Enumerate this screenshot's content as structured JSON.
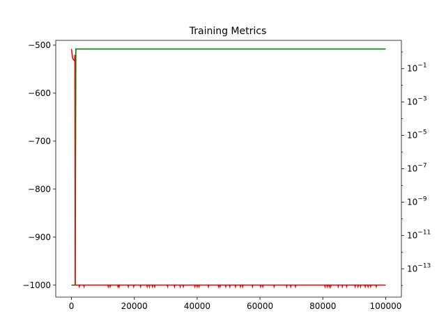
{
  "chart_data": {
    "type": "line",
    "title": "Training Metrics",
    "xlabel": "",
    "ylabel": "",
    "y2label": "",
    "grid": false,
    "legend": "none",
    "xlim": [
      -5000,
      105000
    ],
    "ylim": [
      -1025,
      -490
    ],
    "y2lim_log10": [
      -14.7,
      0.7
    ],
    "x_ticks": [
      {
        "value": 0,
        "label": "0"
      },
      {
        "value": 20000,
        "label": "20000"
      },
      {
        "value": 40000,
        "label": "40000"
      },
      {
        "value": 60000,
        "label": "60000"
      },
      {
        "value": 80000,
        "label": "80000"
      },
      {
        "value": 100000,
        "label": "100000"
      }
    ],
    "y_ticks": [
      {
        "value": -500,
        "label": "−500"
      },
      {
        "value": -600,
        "label": "−600"
      },
      {
        "value": -700,
        "label": "−700"
      },
      {
        "value": -800,
        "label": "−800"
      },
      {
        "value": -900,
        "label": "−900"
      },
      {
        "value": -1000,
        "label": "−1000"
      }
    ],
    "y2_ticks": [
      {
        "exp": -1,
        "base": "10",
        "sup": "−1"
      },
      {
        "exp": -3,
        "base": "10",
        "sup": "−3"
      },
      {
        "exp": -5,
        "base": "10",
        "sup": "−5"
      },
      {
        "exp": -7,
        "base": "10",
        "sup": "−7"
      },
      {
        "exp": -9,
        "base": "10",
        "sup": "−9"
      },
      {
        "exp": -11,
        "base": "10",
        "sup": "−11"
      },
      {
        "exp": -13,
        "base": "10",
        "sup": "−13"
      }
    ],
    "series": [
      {
        "color": "#008000",
        "axis": "left",
        "x": [
          0,
          1000,
          1200,
          1400,
          100000
        ],
        "y": [
          -1000,
          -1000,
          -1000,
          -508,
          -508
        ]
      },
      {
        "color": "#ff0000",
        "axis": "left",
        "x": [
          0,
          400,
          1000,
          1100,
          1200,
          100000
        ],
        "y": [
          -508,
          -528,
          -533,
          -520,
          -1000,
          -1000
        ],
        "dips_to": -1003,
        "dips_x": [
          2500,
          4000,
          11700,
          12300,
          14800,
          15200,
          18100,
          19800,
          22000,
          24100,
          24800,
          25800,
          26500,
          30600,
          32800,
          34600,
          35600,
          39300,
          40000,
          40600,
          43600,
          46800,
          47300,
          49100,
          50400,
          52200,
          53800,
          54500,
          57600,
          60200,
          60900,
          64500,
          68500,
          69800,
          71300,
          80700,
          81400,
          82000,
          82500,
          84900,
          86200,
          87600,
          90300,
          91200,
          92000,
          93500,
          94400,
          95200,
          97000
        ]
      }
    ]
  }
}
